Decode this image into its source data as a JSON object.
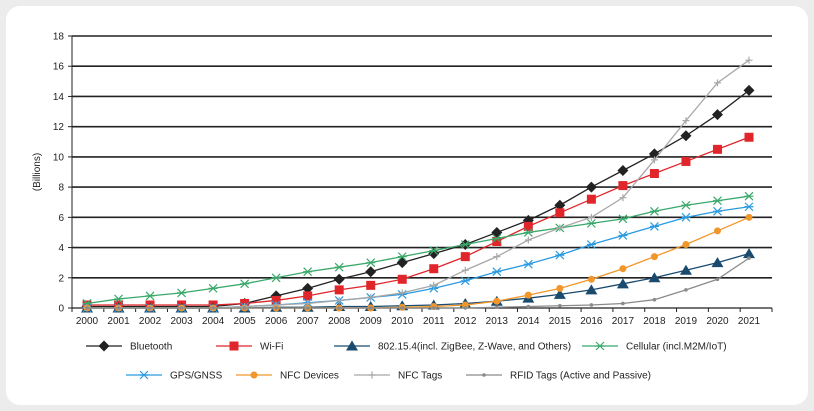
{
  "chart_data": {
    "type": "line",
    "title": "",
    "xlabel": "",
    "ylabel": "(Billions)",
    "ylim": [
      0,
      18
    ],
    "yticks": [
      0,
      2,
      4,
      6,
      8,
      10,
      12,
      14,
      16,
      18
    ],
    "grid": "horizontal",
    "legend_position": "bottom",
    "x": [
      "2000",
      "2001",
      "2002",
      "2003",
      "2004",
      "2005",
      "2006",
      "2007",
      "2008",
      "2009",
      "2010",
      "2011",
      "2012",
      "2013",
      "2014",
      "2015",
      "2016",
      "2017",
      "2018",
      "2019",
      "2020",
      "2021"
    ],
    "series": [
      {
        "name": "Bluetooth",
        "color": "#222222",
        "marker": "diamond",
        "dashed": false,
        "values": [
          0.1,
          0.1,
          0.1,
          0.1,
          0.1,
          0.3,
          0.8,
          1.3,
          1.9,
          2.4,
          3.0,
          3.6,
          4.2,
          5.0,
          5.8,
          6.8,
          8.0,
          9.1,
          10.2,
          11.4,
          12.8,
          14.4
        ]
      },
      {
        "name": "Wi-Fi",
        "color": "#e0262a",
        "marker": "square",
        "dashed": false,
        "values": [
          0.2,
          0.2,
          0.2,
          0.2,
          0.2,
          0.3,
          0.5,
          0.8,
          1.2,
          1.5,
          1.9,
          2.6,
          3.4,
          4.4,
          5.4,
          6.3,
          7.2,
          8.1,
          8.9,
          9.7,
          10.5,
          11.3
        ]
      },
      {
        "name": "802.15.4(incl. ZigBee, Z-Wave, and Others)",
        "color": "#1a4a6e",
        "marker": "triangle",
        "dashed": false,
        "values": [
          0.0,
          0.0,
          0.0,
          0.0,
          0.0,
          0.0,
          0.05,
          0.05,
          0.1,
          0.1,
          0.15,
          0.2,
          0.3,
          0.45,
          0.65,
          0.9,
          1.2,
          1.6,
          2.0,
          2.5,
          3.0,
          3.6
        ]
      },
      {
        "name": "Cellular (incl.M2M/IoT)",
        "color": "#3aa86a",
        "marker": "star",
        "dashed": false,
        "values": [
          0.3,
          0.6,
          0.8,
          1.0,
          1.3,
          1.6,
          2.0,
          2.4,
          2.7,
          3.0,
          3.4,
          3.8,
          4.2,
          4.6,
          5.0,
          5.3,
          5.6,
          5.9,
          6.4,
          6.8,
          7.1,
          7.4
        ]
      },
      {
        "name": "GPS/GNSS",
        "color": "#2a9ae0",
        "marker": "star",
        "dashed": false,
        "values": [
          0.0,
          0.0,
          0.0,
          0.0,
          0.0,
          0.1,
          0.2,
          0.35,
          0.5,
          0.7,
          0.9,
          1.3,
          1.8,
          2.4,
          2.9,
          3.5,
          4.2,
          4.8,
          5.4,
          6.0,
          6.4,
          6.7
        ]
      },
      {
        "name": "NFC Devices",
        "color": "#f0962a",
        "marker": "circle",
        "dashed": false,
        "values": [
          0.0,
          0.0,
          0.0,
          0.0,
          0.0,
          0.0,
          0.0,
          0.0,
          0.0,
          0.0,
          0.05,
          0.1,
          0.2,
          0.45,
          0.85,
          1.3,
          1.9,
          2.6,
          3.4,
          4.2,
          5.1,
          6.0
        ]
      },
      {
        "name": "NFC Tags",
        "color": "#a8a8a8",
        "marker": "plus",
        "dashed": false,
        "values": [
          0.0,
          0.0,
          0.0,
          0.0,
          0.0,
          0.1,
          0.2,
          0.3,
          0.5,
          0.7,
          1.0,
          1.5,
          2.5,
          3.4,
          4.5,
          5.3,
          6.0,
          7.3,
          9.8,
          12.4,
          14.9,
          16.4
        ]
      },
      {
        "name": "RFID Tags (Active and Passive)",
        "color": "#8a8a8a",
        "marker": "dot",
        "dashed": false,
        "values": [
          0.0,
          0.0,
          0.0,
          0.0,
          0.0,
          0.0,
          0.0,
          0.0,
          0.0,
          0.0,
          0.0,
          0.0,
          0.0,
          0.05,
          0.1,
          0.15,
          0.2,
          0.3,
          0.55,
          1.2,
          1.9,
          3.3
        ]
      }
    ]
  }
}
